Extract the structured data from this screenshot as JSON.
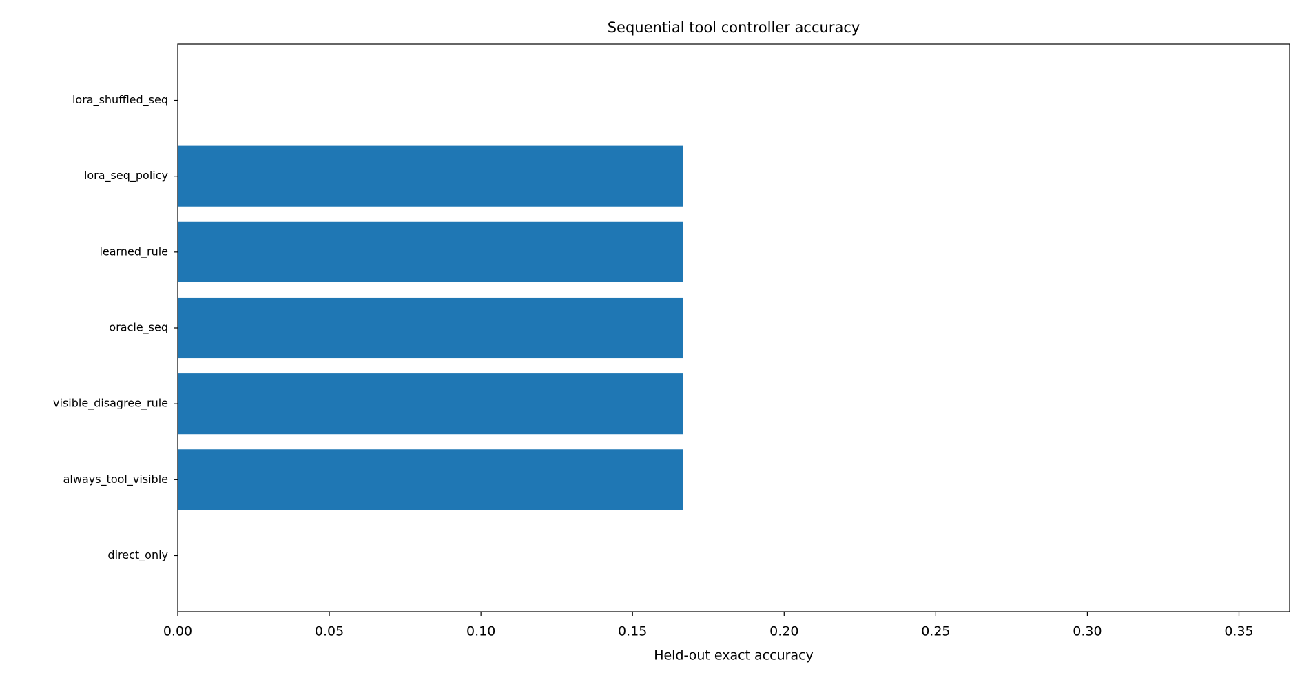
{
  "chart_data": {
    "type": "hbar",
    "title": "Sequential tool controller accuracy",
    "xlabel": "Held-out exact accuracy",
    "categories": [
      "direct_only",
      "always_tool_visible",
      "visible_disagree_rule",
      "oracle_seq",
      "learned_rule",
      "lora_seq_policy",
      "lora_shuffled_seq"
    ],
    "values": [
      0,
      0.1667,
      0.1667,
      0.1667,
      0.1667,
      0.1667,
      0
    ],
    "color": "#1f77b4",
    "xlim": [
      0,
      0.3667
    ],
    "xticks": [
      {
        "value": 0,
        "label": "0.00"
      },
      {
        "value": 0.05,
        "label": "0.05"
      },
      {
        "value": 0.1,
        "label": "0.10"
      },
      {
        "value": 0.15,
        "label": "0.15"
      },
      {
        "value": 0.2,
        "label": "0.20"
      },
      {
        "value": 0.25,
        "label": "0.25"
      },
      {
        "value": 0.3,
        "label": "0.30"
      },
      {
        "value": 0.35,
        "label": "0.35"
      }
    ],
    "grid": false
  }
}
